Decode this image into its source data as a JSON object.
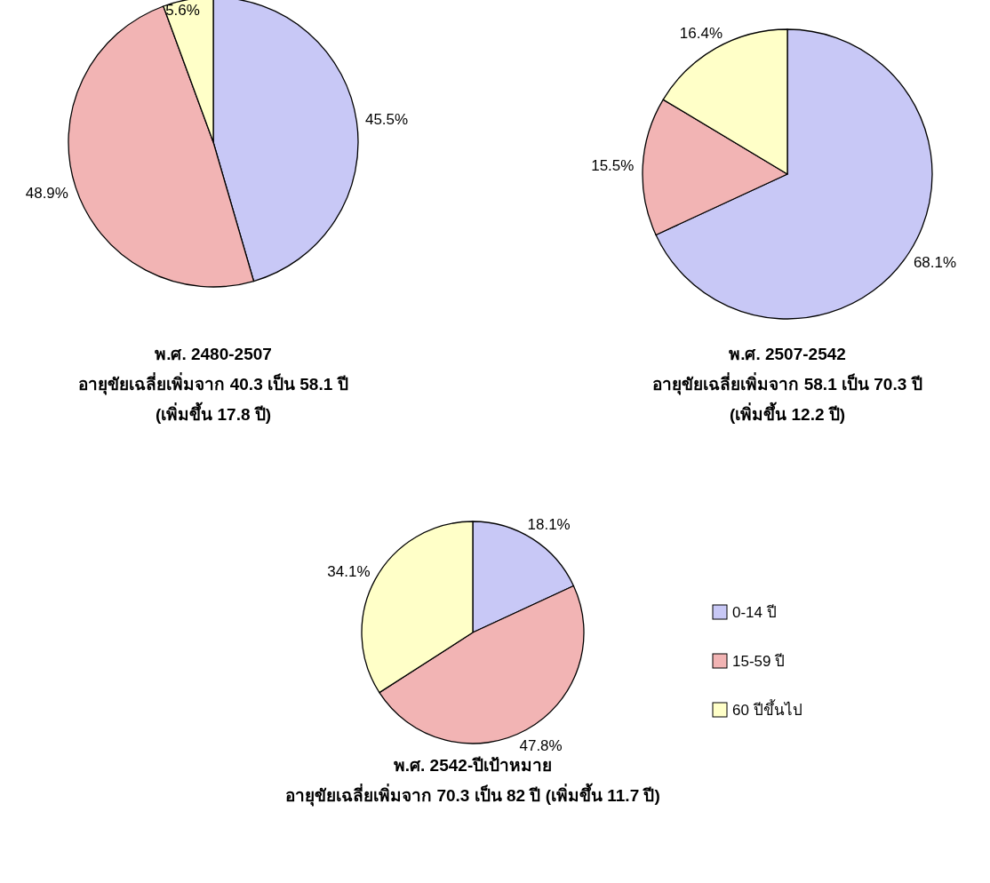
{
  "chart_data": [
    {
      "type": "pie",
      "title": "พ.ศ. 2480-2507",
      "subtitle": "อายุขัยเฉลี่ยเพิ่มจาก 40.3 เป็น 58.1 ปี",
      "annotations": [
        "(เพิ่มขึ้น 17.8 ปี)"
      ],
      "categories": [
        null,
        null,
        null
      ],
      "values": [
        45.5,
        48.9,
        5.6
      ],
      "value_labels": [
        "45.5%",
        "48.9%",
        "5.6%"
      ],
      "colors": [
        "#c8c8f6",
        "#f2b4b4",
        "#ffffc8"
      ],
      "data_labels": true,
      "legend": false
    },
    {
      "type": "pie",
      "title": "พ.ศ. 2507-2542",
      "subtitle": "อายุขัยเฉลี่ยเพิ่มจาก 58.1 เป็น 70.3 ปี",
      "annotations": [
        "(เพิ่มขึ้น 12.2 ปี)"
      ],
      "categories": [
        null,
        null,
        null
      ],
      "values": [
        68.1,
        15.5,
        16.4
      ],
      "value_labels": [
        "68.1%",
        "15.5%",
        "16.4%"
      ],
      "colors": [
        "#c8c8f6",
        "#f2b4b4",
        "#ffffc8"
      ],
      "data_labels": true,
      "legend": false
    },
    {
      "type": "pie",
      "title": "พ.ศ. 2542-ปีเป้าหมาย",
      "subtitle": "อายุขัยเฉลี่ยเพิ่มจาก 70.3 เป็น 82 ปี (เพิ่มขึ้น 11.7 ปี)",
      "categories": [
        "0-14 ปี",
        "15-59 ปี",
        "60 ปีขึ้นไป"
      ],
      "values": [
        18.1,
        47.8,
        34.1
      ],
      "value_labels": [
        "18.1%",
        "47.8%",
        "34.1%"
      ],
      "colors": [
        "#c8c8f6",
        "#f2b4b4",
        "#ffffc8"
      ],
      "data_labels": true,
      "legend": "right"
    }
  ]
}
